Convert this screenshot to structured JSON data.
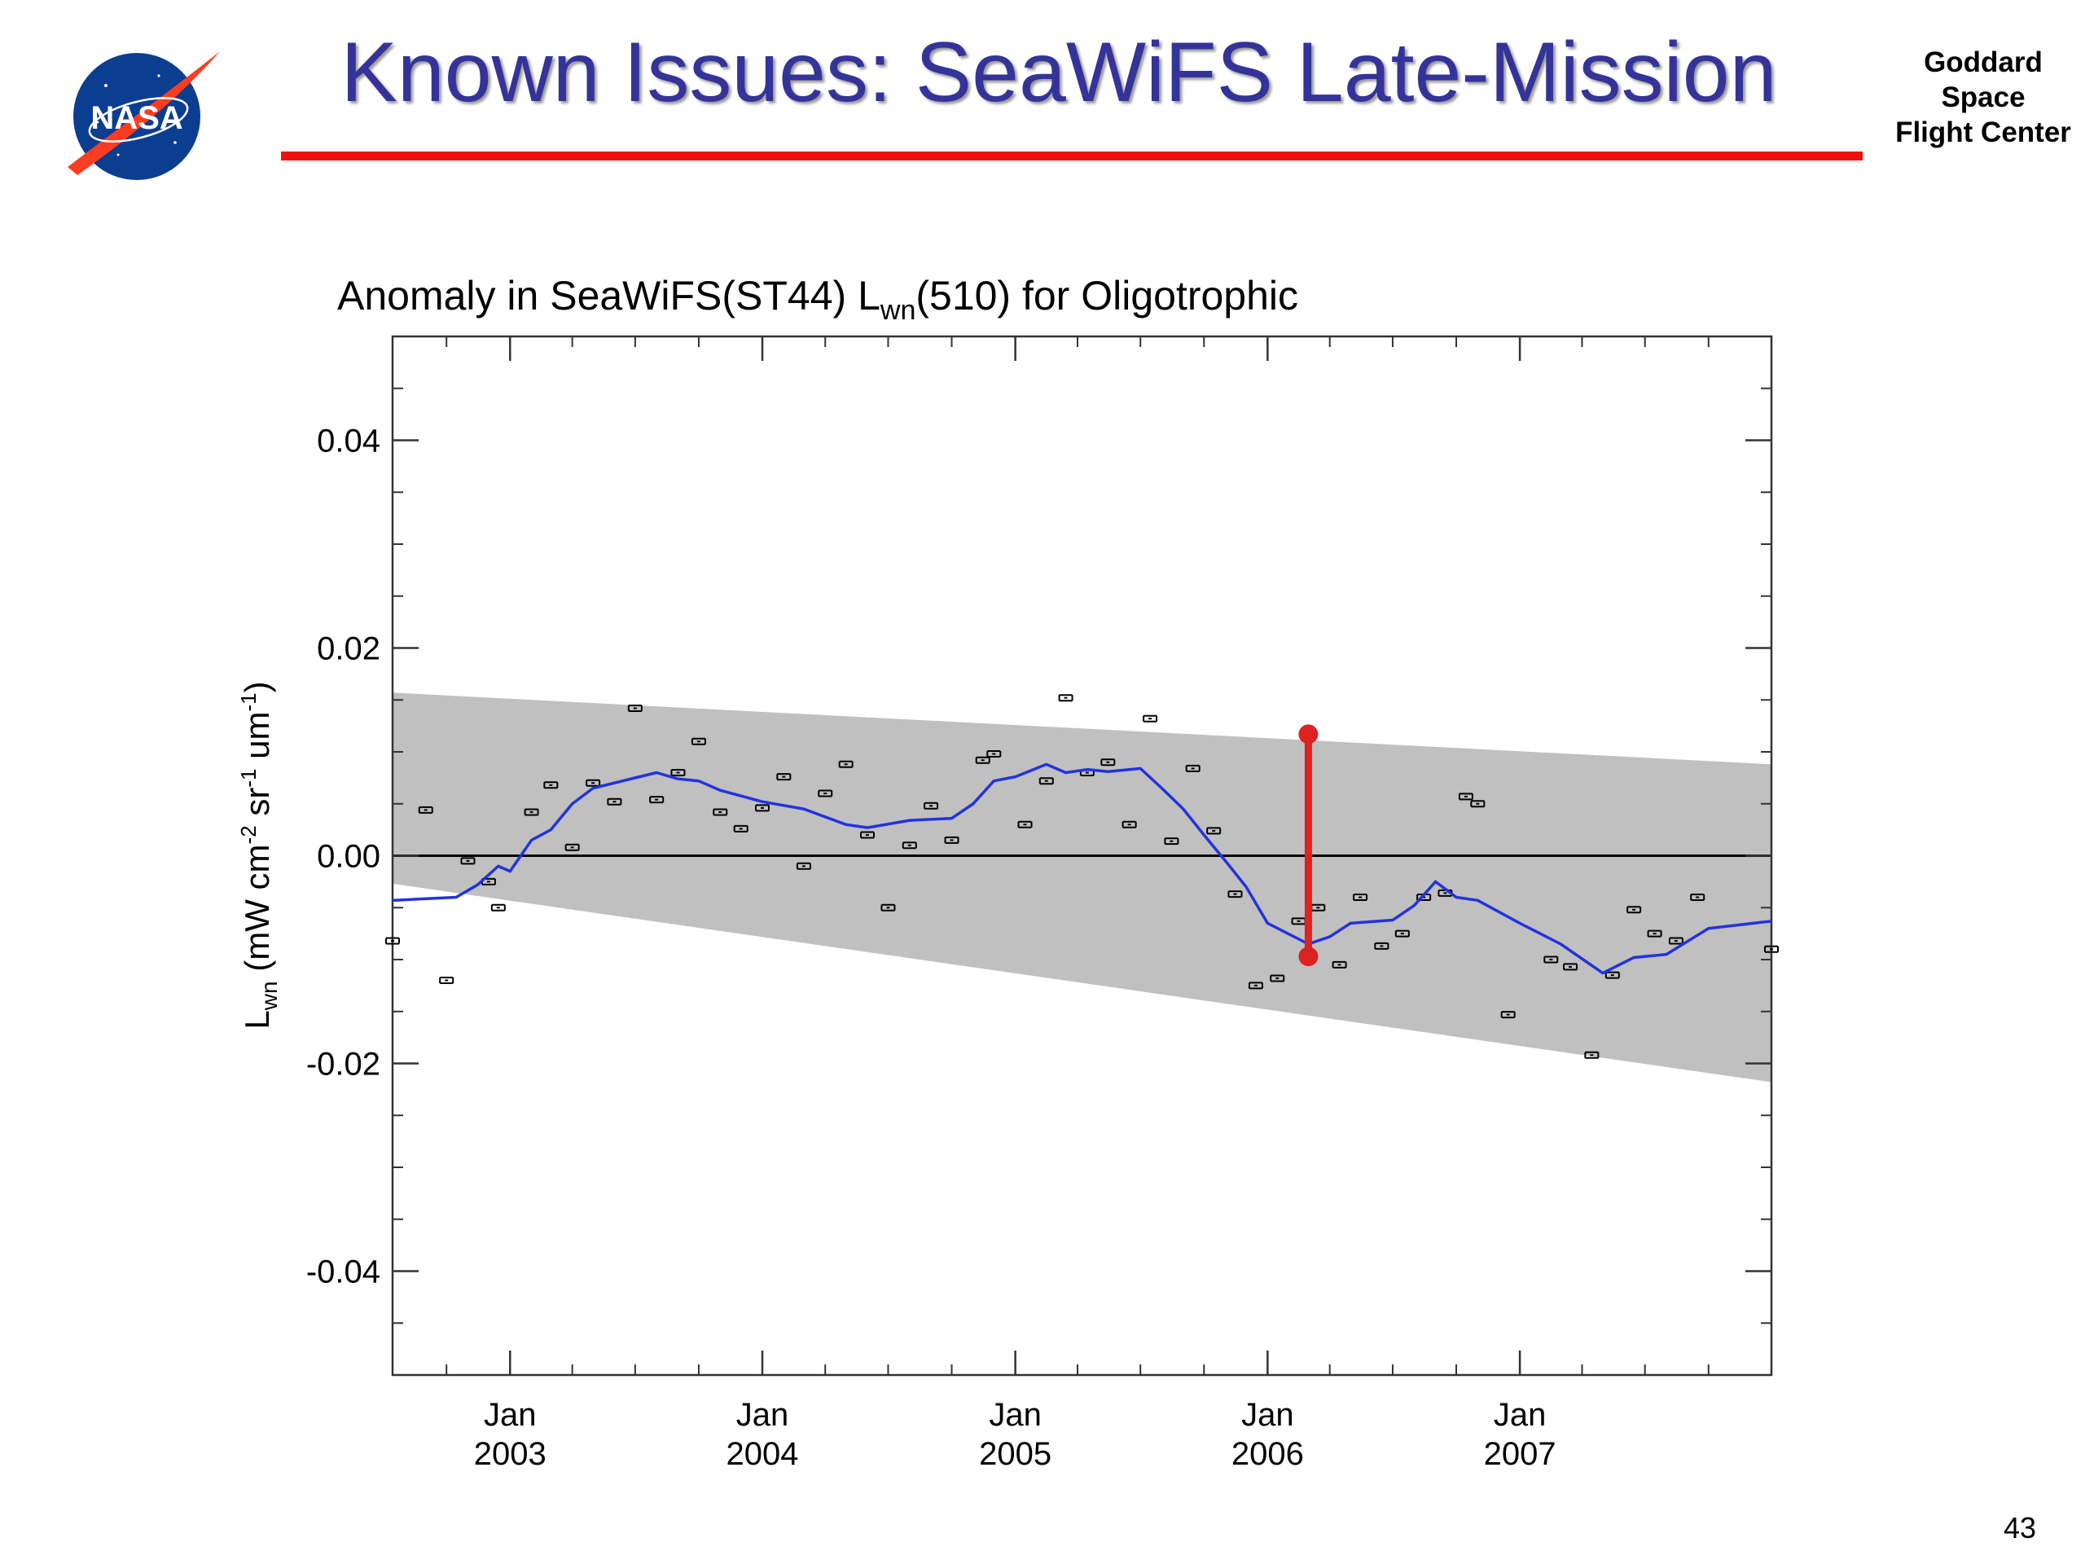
{
  "slide": {
    "title": "Known Issues: SeaWiFS Late-Mission",
    "org_lines": [
      "Goddard",
      "Space",
      "Flight Center"
    ],
    "logo_text": "NASA",
    "page_number": "43",
    "colors": {
      "title": "#333399",
      "rule": "#ee1111",
      "logo_blue": "#0b3d91",
      "logo_red": "#fc3d21"
    }
  },
  "chart_data": {
    "type": "scatter",
    "title": "Anomaly in SeaWiFS(ST44) L",
    "title_subscript": "wn",
    "title_suffix": "(510) for Oligotrophic",
    "ylabel": "L",
    "ylabel_subscript": "wn",
    "ylabel_units": " (mW cm",
    "ylabel_units_parts": [
      " (mW cm",
      "-2",
      " sr",
      "-1",
      " um",
      "-1",
      ")"
    ],
    "xlabel": "",
    "x_domain": [
      "2002-07-15",
      "2007-12-31"
    ],
    "ylim": [
      -0.05,
      0.05
    ],
    "y_ticks": [
      {
        "v": 0.04,
        "label": "0.04"
      },
      {
        "v": 0.02,
        "label": "0.02"
      },
      {
        "v": 0.0,
        "label": "0.00"
      },
      {
        "v": -0.02,
        "label": "-0.02"
      },
      {
        "v": -0.04,
        "label": "-0.04"
      }
    ],
    "x_ticks": [
      {
        "date": "2003-01-01",
        "line1": "Jan",
        "line2": "2003"
      },
      {
        "date": "2004-01-01",
        "line1": "Jan",
        "line2": "2004"
      },
      {
        "date": "2005-01-01",
        "line1": "Jan",
        "line2": "2005"
      },
      {
        "date": "2006-01-01",
        "line1": "Jan",
        "line2": "2006"
      },
      {
        "date": "2007-01-01",
        "line1": "Jan",
        "line2": "2007"
      }
    ],
    "grid": false,
    "zero_line": 0.0,
    "band": {
      "color": "#c0c0c0",
      "start": {
        "date": "2002-07-15",
        "upper": 0.0157,
        "lower": -0.0027
      },
      "end": {
        "date": "2007-12-31",
        "upper": 0.0088,
        "lower": -0.0218
      }
    },
    "points": [
      {
        "date": "2002-07-15",
        "y": -0.0082
      },
      {
        "date": "2002-09-01",
        "y": 0.0044
      },
      {
        "date": "2002-10-01",
        "y": -0.012
      },
      {
        "date": "2002-11-01",
        "y": -0.0005
      },
      {
        "date": "2002-12-01",
        "y": -0.0025
      },
      {
        "date": "2002-12-15",
        "y": -0.005
      },
      {
        "date": "2003-02-01",
        "y": 0.0042
      },
      {
        "date": "2003-03-01",
        "y": 0.0068
      },
      {
        "date": "2003-04-01",
        "y": 0.0008
      },
      {
        "date": "2003-05-01",
        "y": 0.007
      },
      {
        "date": "2003-06-01",
        "y": 0.0052
      },
      {
        "date": "2003-07-01",
        "y": 0.0142
      },
      {
        "date": "2003-08-01",
        "y": 0.0054
      },
      {
        "date": "2003-09-01",
        "y": 0.008
      },
      {
        "date": "2003-10-01",
        "y": 0.011
      },
      {
        "date": "2003-11-01",
        "y": 0.0042
      },
      {
        "date": "2003-12-01",
        "y": 0.0026
      },
      {
        "date": "2004-01-01",
        "y": 0.0046
      },
      {
        "date": "2004-02-01",
        "y": 0.0076
      },
      {
        "date": "2004-03-01",
        "y": -0.001
      },
      {
        "date": "2004-04-01",
        "y": 0.006
      },
      {
        "date": "2004-05-01",
        "y": 0.0088
      },
      {
        "date": "2004-06-01",
        "y": 0.002
      },
      {
        "date": "2004-07-01",
        "y": -0.005
      },
      {
        "date": "2004-08-01",
        "y": 0.001
      },
      {
        "date": "2004-09-01",
        "y": 0.0048
      },
      {
        "date": "2004-10-01",
        "y": 0.0015
      },
      {
        "date": "2004-11-15",
        "y": 0.0092
      },
      {
        "date": "2004-12-01",
        "y": 0.0098
      },
      {
        "date": "2005-01-15",
        "y": 0.003
      },
      {
        "date": "2005-02-15",
        "y": 0.0072
      },
      {
        "date": "2005-03-15",
        "y": 0.0152
      },
      {
        "date": "2005-04-15",
        "y": 0.008
      },
      {
        "date": "2005-05-15",
        "y": 0.009
      },
      {
        "date": "2005-06-15",
        "y": 0.003
      },
      {
        "date": "2005-07-15",
        "y": 0.0132
      },
      {
        "date": "2005-08-15",
        "y": 0.0014
      },
      {
        "date": "2005-09-15",
        "y": 0.0084
      },
      {
        "date": "2005-10-15",
        "y": 0.0024
      },
      {
        "date": "2005-11-15",
        "y": -0.0037
      },
      {
        "date": "2005-12-15",
        "y": -0.0125
      },
      {
        "date": "2006-01-15",
        "y": -0.0118
      },
      {
        "date": "2006-02-15",
        "y": -0.0063
      },
      {
        "date": "2006-03-15",
        "y": -0.005
      },
      {
        "date": "2006-04-15",
        "y": -0.0105
      },
      {
        "date": "2006-05-15",
        "y": -0.004
      },
      {
        "date": "2006-06-15",
        "y": -0.0087
      },
      {
        "date": "2006-07-15",
        "y": -0.0075
      },
      {
        "date": "2006-08-15",
        "y": -0.004
      },
      {
        "date": "2006-09-15",
        "y": -0.0036
      },
      {
        "date": "2006-10-15",
        "y": 0.0057
      },
      {
        "date": "2006-11-01",
        "y": 0.005
      },
      {
        "date": "2006-12-15",
        "y": -0.0153
      },
      {
        "date": "2007-02-15",
        "y": -0.01
      },
      {
        "date": "2007-03-15",
        "y": -0.0107
      },
      {
        "date": "2007-04-15",
        "y": -0.0192
      },
      {
        "date": "2007-05-15",
        "y": -0.0115
      },
      {
        "date": "2007-06-15",
        "y": -0.0052
      },
      {
        "date": "2007-07-15",
        "y": -0.0075
      },
      {
        "date": "2007-08-15",
        "y": -0.0082
      },
      {
        "date": "2007-09-15",
        "y": -0.004
      },
      {
        "date": "2007-12-31",
        "y": -0.009
      }
    ],
    "smoothed": {
      "color": "#2233dd",
      "points": [
        {
          "date": "2002-07-15",
          "y": -0.0043
        },
        {
          "date": "2002-10-15",
          "y": -0.004
        },
        {
          "date": "2002-11-15",
          "y": -0.0028
        },
        {
          "date": "2002-12-15",
          "y": -0.001
        },
        {
          "date": "2003-01-01",
          "y": -0.0015
        },
        {
          "date": "2003-02-01",
          "y": 0.0015
        },
        {
          "date": "2003-03-01",
          "y": 0.0025
        },
        {
          "date": "2003-04-01",
          "y": 0.005
        },
        {
          "date": "2003-05-01",
          "y": 0.0065
        },
        {
          "date": "2003-07-01",
          "y": 0.0075
        },
        {
          "date": "2003-08-01",
          "y": 0.008
        },
        {
          "date": "2003-09-01",
          "y": 0.0074
        },
        {
          "date": "2003-10-01",
          "y": 0.0072
        },
        {
          "date": "2003-11-01",
          "y": 0.0063
        },
        {
          "date": "2004-01-01",
          "y": 0.0052
        },
        {
          "date": "2004-03-01",
          "y": 0.0045
        },
        {
          "date": "2004-05-01",
          "y": 0.003
        },
        {
          "date": "2004-06-01",
          "y": 0.0027
        },
        {
          "date": "2004-08-01",
          "y": 0.0034
        },
        {
          "date": "2004-10-01",
          "y": 0.0036
        },
        {
          "date": "2004-11-01",
          "y": 0.005
        },
        {
          "date": "2004-12-01",
          "y": 0.0072
        },
        {
          "date": "2005-01-01",
          "y": 0.0076
        },
        {
          "date": "2005-02-15",
          "y": 0.0088
        },
        {
          "date": "2005-03-15",
          "y": 0.008
        },
        {
          "date": "2005-04-15",
          "y": 0.0083
        },
        {
          "date": "2005-05-15",
          "y": 0.0081
        },
        {
          "date": "2005-07-01",
          "y": 0.0084
        },
        {
          "date": "2005-08-01",
          "y": 0.0065
        },
        {
          "date": "2005-09-01",
          "y": 0.0045
        },
        {
          "date": "2005-10-01",
          "y": 0.002
        },
        {
          "date": "2005-11-01",
          "y": -0.0005
        },
        {
          "date": "2005-12-01",
          "y": -0.003
        },
        {
          "date": "2006-01-01",
          "y": -0.0065
        },
        {
          "date": "2006-03-01",
          "y": -0.0085
        },
        {
          "date": "2006-04-01",
          "y": -0.0078
        },
        {
          "date": "2006-05-01",
          "y": -0.0065
        },
        {
          "date": "2006-07-01",
          "y": -0.0062
        },
        {
          "date": "2006-08-01",
          "y": -0.0048
        },
        {
          "date": "2006-09-01",
          "y": -0.0025
        },
        {
          "date": "2006-10-01",
          "y": -0.004
        },
        {
          "date": "2006-11-01",
          "y": -0.0043
        },
        {
          "date": "2007-01-01",
          "y": -0.0065
        },
        {
          "date": "2007-03-01",
          "y": -0.0085
        },
        {
          "date": "2007-05-01",
          "y": -0.0113
        },
        {
          "date": "2007-06-15",
          "y": -0.0098
        },
        {
          "date": "2007-08-01",
          "y": -0.0095
        },
        {
          "date": "2007-10-01",
          "y": -0.007
        },
        {
          "date": "2007-12-31",
          "y": -0.0063
        }
      ]
    },
    "marker": {
      "color": "#dd2222",
      "date": "2006-03-01",
      "top": 0.0117,
      "bottom": -0.0097
    }
  }
}
